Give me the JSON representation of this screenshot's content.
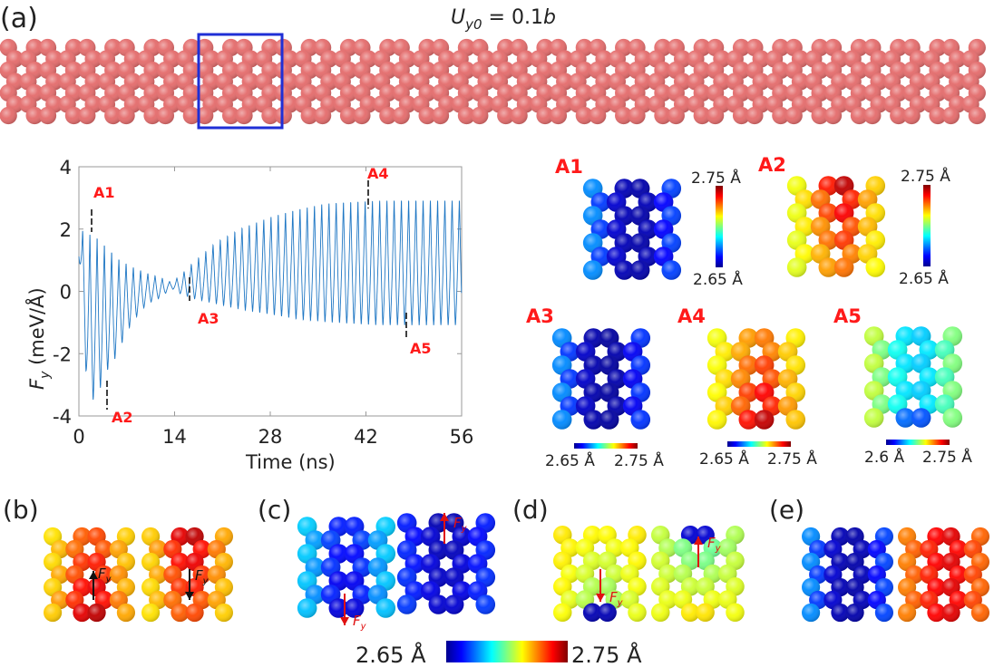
{
  "panel_labels": {
    "a": "(a)",
    "b": "(b)",
    "c": "(c)",
    "d": "(d)",
    "e": "(e)"
  },
  "title": {
    "main": "U",
    "sub": "y0",
    "rest": " = 0.1",
    "var": "b"
  },
  "ribbon_color": "#e46b6b",
  "highlight_box_color": "#1f2fd6",
  "chart_data": {
    "type": "line",
    "title": "",
    "xlabel": "Time (ns)",
    "ylabel": {
      "main": "F",
      "sub": "y",
      "unit": " (meV/Å)"
    },
    "xlim": [
      0,
      56
    ],
    "ylim": [
      -4,
      4
    ],
    "xticks": [
      "0",
      "14",
      "28",
      "42",
      "56"
    ],
    "yticks": [
      "4",
      "2",
      "0",
      "-2",
      "-4"
    ],
    "series_color": "#1f77c4",
    "oscillation_period_ns": 1.06,
    "upper_envelope": [
      [
        0,
        2.0
      ],
      [
        1,
        2.0
      ],
      [
        2.5,
        1.85
      ],
      [
        4,
        1.5
      ],
      [
        6,
        1.05
      ],
      [
        8,
        0.8
      ],
      [
        10,
        0.6
      ],
      [
        12,
        0.45
      ],
      [
        13.5,
        0.3
      ],
      [
        15,
        0.55
      ],
      [
        16,
        0.8
      ],
      [
        18,
        1.2
      ],
      [
        20,
        1.6
      ],
      [
        24,
        2.1
      ],
      [
        28,
        2.45
      ],
      [
        32,
        2.7
      ],
      [
        36,
        2.9
      ],
      [
        40,
        2.95
      ],
      [
        44,
        3.0
      ],
      [
        56,
        3.0
      ]
    ],
    "lower_envelope": [
      [
        0,
        1.1
      ],
      [
        1.3,
        -3.5
      ],
      [
        2.5,
        -3.5
      ],
      [
        4,
        -2.6
      ],
      [
        5.5,
        -2.1
      ],
      [
        7,
        -1.3
      ],
      [
        8.5,
        -0.8
      ],
      [
        10,
        -0.4
      ],
      [
        12,
        -0.2
      ],
      [
        13.5,
        0.1
      ],
      [
        15,
        -0.1
      ],
      [
        17,
        -0.25
      ],
      [
        20,
        -0.4
      ],
      [
        24,
        -0.6
      ],
      [
        28,
        -0.75
      ],
      [
        32,
        -0.9
      ],
      [
        36,
        -1.0
      ],
      [
        40,
        -1.05
      ],
      [
        44,
        -1.1
      ],
      [
        56,
        -1.1
      ]
    ],
    "annotations": [
      {
        "label": "A1",
        "t": 1.0,
        "y": 2.0
      },
      {
        "label": "A2",
        "t": 2.5,
        "y": -3.5
      },
      {
        "label": "A3",
        "t": 13.5,
        "y": 0.2
      },
      {
        "label": "A4",
        "t": 37.0,
        "y": 2.9
      },
      {
        "label": "A5",
        "t": 42.0,
        "y": -1.1
      }
    ]
  },
  "insets": [
    {
      "label": "A1",
      "cb_max": "2.75 Å",
      "cb_min": "2.65 Å"
    },
    {
      "label": "A2",
      "cb_max": "2.75 Å",
      "cb_min": "2.65 Å"
    },
    {
      "label": "A3",
      "cb_min": "2.65 Å",
      "cb_max": "2.75 Å"
    },
    {
      "label": "A4",
      "cb_min": "2.65 Å",
      "cb_max": "2.75 Å"
    },
    {
      "label": "A5",
      "cb_min": "2.6 Å",
      "cb_max": "2.75 Å"
    }
  ],
  "force_label": {
    "main": "F",
    "sub": "y"
  },
  "bottom_colorbar": {
    "min": "2.65 Å",
    "max": "2.75 Å"
  }
}
